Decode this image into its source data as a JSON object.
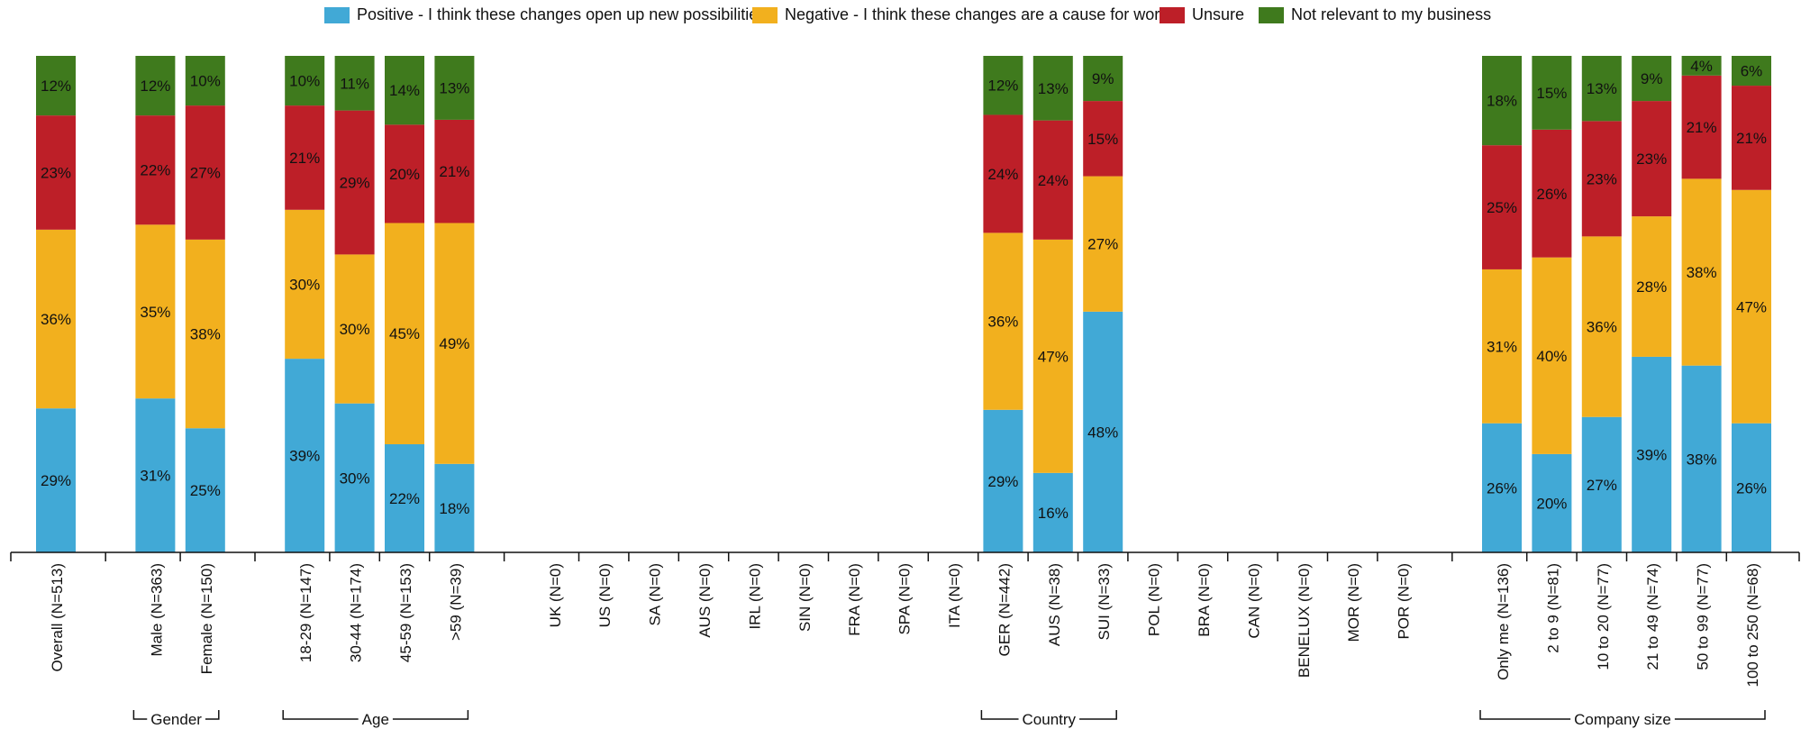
{
  "legend": {
    "positive": "Positive - I think these changes open up new possibilities",
    "negative": "Negative - I think these changes are a cause for worry",
    "unsure": "Unsure",
    "not_relevant": "Not relevant to my business"
  },
  "colors": {
    "positive": "#41a9d6",
    "negative": "#f2b01e",
    "unsure": "#bd1f28",
    "not_relevant": "#3f7a1d",
    "axis": "#111111"
  },
  "chart_data": {
    "type": "bar",
    "stacked": true,
    "percent": true,
    "ylim": [
      0,
      100
    ],
    "series_keys": [
      "positive",
      "negative",
      "unsure",
      "not_relevant"
    ],
    "categories": [
      "Overall  (N=513)",
      "Male  (N=363)",
      "Female  (N=150)",
      "18-29  (N=147)",
      "30-44  (N=174)",
      "45-59  (N=153)",
      ">59  (N=39)",
      "UK  (N=0)",
      "US  (N=0)",
      "SA  (N=0)",
      "AUS  (N=0)",
      "IRL  (N=0)",
      "SIN  (N=0)",
      "FRA  (N=0)",
      "SPA  (N=0)",
      "ITA  (N=0)",
      "GER  (N=442)",
      "AUS  (N=38)",
      "SUI  (N=33)",
      "POL  (N=0)",
      "BRA  (N=0)",
      "CAN  (N=0)",
      "BENELUX  (N=0)",
      "MOR  (N=0)",
      "POR  (N=0)",
      "Only me  (N=136)",
      "2 to 9  (N=81)",
      "10 to 20  (N=77)",
      "21 to 49  (N=74)",
      "50 to 99  (N=77)",
      "100 to 250  (N=68)"
    ],
    "values": [
      [
        29,
        36,
        23,
        12
      ],
      [
        31,
        35,
        22,
        12
      ],
      [
        25,
        38,
        27,
        10
      ],
      [
        39,
        30,
        21,
        10
      ],
      [
        30,
        30,
        29,
        11
      ],
      [
        22,
        45,
        20,
        14
      ],
      [
        18,
        49,
        21,
        13
      ],
      null,
      null,
      null,
      null,
      null,
      null,
      null,
      null,
      null,
      [
        29,
        36,
        24,
        12
      ],
      [
        16,
        47,
        24,
        13
      ],
      [
        48,
        27,
        15,
        9
      ],
      null,
      null,
      null,
      null,
      null,
      null,
      [
        26,
        31,
        25,
        18
      ],
      [
        20,
        40,
        26,
        15
      ],
      [
        27,
        36,
        23,
        13
      ],
      [
        39,
        28,
        23,
        9
      ],
      [
        38,
        38,
        21,
        4
      ],
      [
        26,
        47,
        21,
        6
      ]
    ],
    "groups": [
      {
        "label": "",
        "categories": [
          0
        ]
      },
      {
        "label": "Gender",
        "categories": [
          1,
          2
        ]
      },
      {
        "label": "Age",
        "categories": [
          3,
          4,
          5,
          6
        ]
      },
      {
        "label": "Country",
        "categories": [
          7,
          8,
          9,
          10,
          11,
          12,
          13,
          14,
          15,
          16,
          17,
          18,
          19,
          20,
          21,
          22,
          23,
          24
        ]
      },
      {
        "label": "Company size",
        "categories": [
          25,
          26,
          27,
          28,
          29,
          30
        ]
      }
    ]
  }
}
